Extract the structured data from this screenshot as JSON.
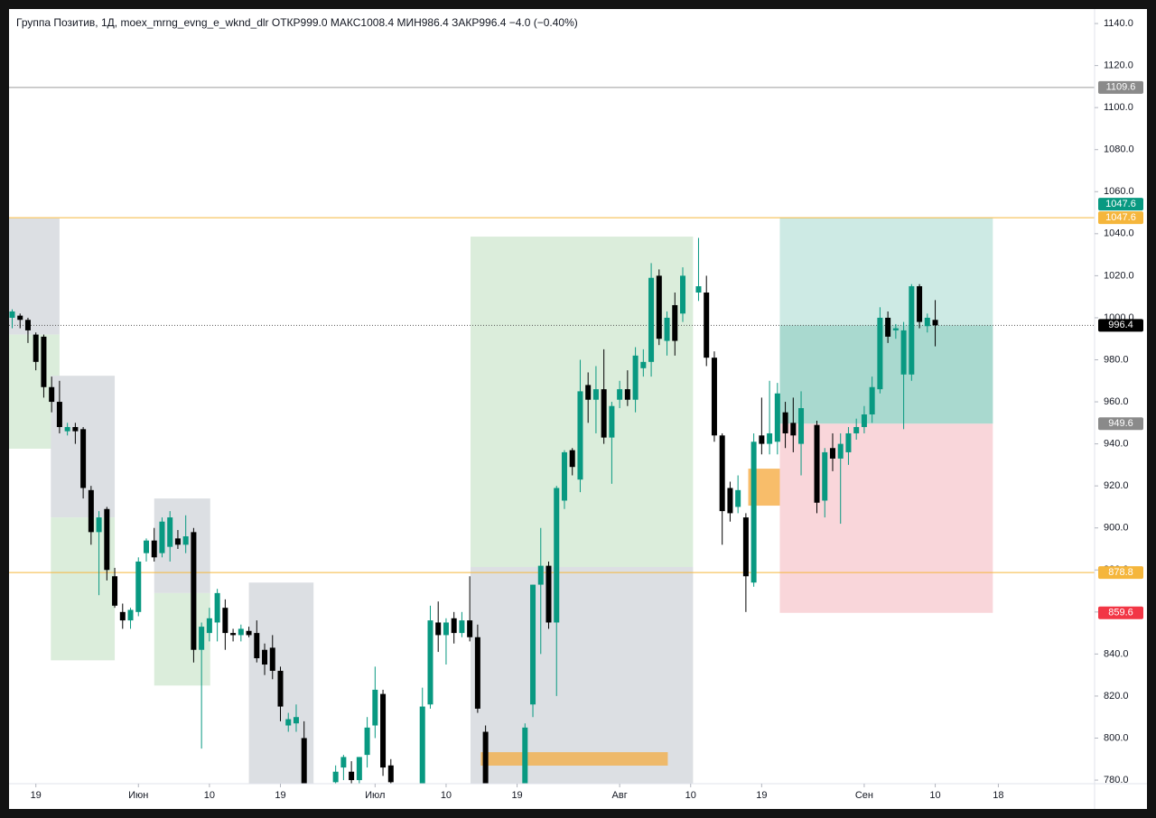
{
  "chart_data": {
    "type": "candlestick",
    "title": "Группа Позитив, 1Д, moex_mrng_evng_e_wknd_dlr  ОТКР999.0  МАКС1008.4  МИН986.4  ЗАКР996.4  −4.0 (−0.40%)",
    "up_color": "#089981",
    "down_color": "#000000",
    "xlim": [
      -3.4,
      134.2
    ],
    "ylim": [
      778.3,
      1146.9
    ],
    "xticks": [
      {
        "value": 0,
        "label": "19"
      },
      {
        "value": 13,
        "label": "Июн"
      },
      {
        "value": 22,
        "label": "10"
      },
      {
        "value": 31,
        "label": "19"
      },
      {
        "value": 43,
        "label": "Июл"
      },
      {
        "value": 52,
        "label": "10"
      },
      {
        "value": 61,
        "label": "19"
      },
      {
        "value": 74,
        "label": "Авг"
      },
      {
        "value": 83,
        "label": "10"
      },
      {
        "value": 92,
        "label": "19"
      },
      {
        "value": 105,
        "label": "Сен"
      },
      {
        "value": 114,
        "label": "10"
      },
      {
        "value": 122,
        "label": "18"
      }
    ],
    "yticks": [
      {
        "value": 780,
        "label": "780.0"
      },
      {
        "value": 800,
        "label": "800.0"
      },
      {
        "value": 820,
        "label": "820.0"
      },
      {
        "value": 840,
        "label": "840.0"
      },
      {
        "value": 860,
        "label": "860.0"
      },
      {
        "value": 880,
        "label": "880.0"
      },
      {
        "value": 900,
        "label": "900.0"
      },
      {
        "value": 920,
        "label": "920.0"
      },
      {
        "value": 940,
        "label": "940.0"
      },
      {
        "value": 960,
        "label": "960.0"
      },
      {
        "value": 980,
        "label": "980.0"
      },
      {
        "value": 1000,
        "label": "1000.0"
      },
      {
        "value": 1020,
        "label": "1020.0"
      },
      {
        "value": 1040,
        "label": "1040.0"
      },
      {
        "value": 1060,
        "label": "1060.0"
      },
      {
        "value": 1080,
        "label": "1080.0"
      },
      {
        "value": 1100,
        "label": "1100.0"
      },
      {
        "value": 1120,
        "label": "1120.0"
      },
      {
        "value": 1140,
        "label": "1140.0"
      }
    ],
    "x": [
      -3,
      -2,
      -1,
      0,
      1,
      2,
      3,
      4,
      5,
      6,
      7,
      8,
      9,
      10,
      11,
      12,
      13,
      14,
      15,
      16,
      17,
      18,
      19,
      20,
      21,
      22,
      23,
      24,
      25,
      26,
      27,
      28,
      29,
      30,
      31,
      32,
      33,
      34,
      38,
      39,
      40,
      41,
      42,
      43,
      44,
      45,
      49,
      50,
      51,
      52,
      53,
      54,
      55,
      56,
      57,
      62,
      63,
      64,
      65,
      66,
      67,
      68,
      69,
      70,
      71,
      72,
      73,
      74,
      75,
      76,
      77,
      78,
      79,
      80,
      81,
      82,
      84,
      85,
      86,
      87,
      88,
      89,
      90,
      91,
      92,
      93,
      94,
      95,
      96,
      97,
      99,
      100,
      101,
      102,
      103,
      104,
      105,
      106,
      107,
      108,
      109,
      110,
      111,
      112,
      113,
      114
    ],
    "open": [
      1000,
      1001,
      999,
      992,
      991,
      967,
      960,
      946,
      948,
      947,
      918,
      898,
      909,
      877,
      860,
      856,
      860,
      888,
      894,
      888,
      891,
      895,
      892,
      898,
      842,
      850,
      855,
      862,
      850,
      849,
      851,
      850,
      842,
      843,
      832,
      806,
      807,
      800,
      779,
      786,
      784,
      780,
      792,
      806,
      821,
      787,
      778,
      816,
      855,
      849,
      857,
      850,
      856,
      848,
      803,
      778,
      816,
      873,
      882,
      855,
      913,
      937,
      923,
      968,
      961,
      966,
      943,
      961,
      966,
      961,
      976,
      979,
      1020,
      989,
      1006,
      1002,
      1012,
      1012,
      981,
      944,
      919,
      910,
      905,
      874,
      944,
      940,
      941,
      955,
      950,
      940,
      949,
      913,
      938,
      933,
      936,
      945,
      948,
      954,
      966,
      1000,
      994,
      973,
      973,
      1015,
      996,
      999
    ],
    "high": [
      1004,
      1002,
      1000,
      993,
      992,
      972,
      970,
      950,
      950,
      948,
      920,
      908,
      910,
      881,
      864,
      862,
      886,
      895,
      900,
      905,
      908,
      899,
      906,
      900,
      855,
      862,
      871,
      866,
      852,
      854,
      853,
      856,
      845,
      849,
      834,
      812,
      816,
      808,
      787,
      792,
      789,
      791,
      810,
      834,
      823,
      790,
      824,
      863,
      865,
      857,
      860,
      860,
      877,
      854,
      806,
      807,
      873,
      900,
      884,
      920,
      937,
      938,
      980,
      974,
      977,
      985,
      960,
      970,
      975,
      986,
      985,
      1026,
      1023,
      1003,
      1012,
      1024,
      1038,
      1020,
      984,
      945,
      922,
      925,
      907,
      945,
      962,
      970,
      969,
      960,
      962,
      965,
      951,
      938,
      945,
      945,
      948,
      952,
      958,
      972,
      1005,
      1003,
      997,
      998,
      1016,
      1016,
      1002,
      1008.4
    ],
    "low": [
      995,
      995,
      988,
      975,
      962,
      955,
      945,
      944,
      940,
      914,
      892,
      868,
      875,
      862,
      852,
      852,
      858,
      884,
      884,
      886,
      884,
      890,
      888,
      836,
      795,
      846,
      846,
      842,
      846,
      846,
      848,
      836,
      830,
      828,
      808,
      803,
      803,
      775,
      778,
      780,
      778,
      778,
      786,
      800,
      782,
      777,
      776,
      814,
      841,
      835,
      845,
      848,
      846,
      812,
      776,
      776,
      810,
      840,
      852,
      820,
      909,
      925,
      917,
      950,
      945,
      940,
      921,
      957,
      958,
      955,
      972,
      972,
      987,
      982,
      982,
      998,
      1008,
      977,
      941,
      892,
      903,
      907,
      860,
      872,
      935,
      935,
      935,
      938,
      936,
      925,
      907,
      905,
      927,
      902,
      930,
      942,
      945,
      950,
      964,
      988,
      990,
      947,
      970,
      995,
      993,
      986.4
    ],
    "close": [
      1003,
      999,
      994,
      979,
      967,
      960,
      948,
      948,
      946,
      919,
      898,
      905,
      880,
      863,
      856,
      861,
      884,
      894,
      886,
      903,
      905,
      892,
      896,
      842,
      853,
      857,
      869,
      850,
      849,
      852,
      849,
      838,
      835,
      832,
      815,
      809,
      810,
      776,
      784,
      791,
      780,
      791,
      805,
      823,
      786,
      779,
      815,
      856,
      849,
      855,
      850,
      856,
      848,
      814,
      777,
      805,
      873,
      882,
      855,
      919,
      936,
      929,
      965,
      961,
      966,
      943,
      958,
      966,
      961,
      982,
      979,
      1019,
      990,
      1000,
      989,
      1020,
      1015,
      981,
      944,
      908,
      907,
      918,
      877,
      941,
      940,
      945,
      964,
      945,
      944,
      957,
      912,
      936,
      933,
      940,
      945,
      948,
      954,
      967,
      1000,
      991,
      995,
      994,
      1015,
      998,
      1000,
      996.4
    ],
    "zones": [
      {
        "x": [
          -3.4,
          3
        ],
        "y": [
          992,
          1047.3
        ],
        "color": "#dcdfe3"
      },
      {
        "x": [
          -3.4,
          3
        ],
        "y": [
          937.7,
          992
        ],
        "color": "#dbeddb"
      },
      {
        "x": [
          1.9,
          10
        ],
        "y": [
          905,
          972.4
        ],
        "color": "#dcdfe3"
      },
      {
        "x": [
          1.9,
          10
        ],
        "y": [
          837,
          905
        ],
        "color": "#dbeddb"
      },
      {
        "x": [
          15,
          22.1
        ],
        "y": [
          869,
          914
        ],
        "color": "#dcdfe3"
      },
      {
        "x": [
          15,
          22.1
        ],
        "y": [
          825,
          869
        ],
        "color": "#dbeddb"
      },
      {
        "x": [
          27,
          35.2
        ],
        "y": [
          778.3,
          874
        ],
        "color": "#dcdfe3"
      },
      {
        "x": [
          55.1,
          83.3
        ],
        "y": [
          881.4,
          1038.6
        ],
        "color": "#dbeddb"
      },
      {
        "x": [
          55.1,
          83.3
        ],
        "y": [
          778.3,
          881.4
        ],
        "color": "#dcdfe3"
      },
      {
        "x": [
          56.4,
          80.1
        ],
        "y": [
          786.9,
          793.3
        ],
        "color": "#eeb96a"
      },
      {
        "x": [
          90.3,
          97.1
        ],
        "y": [
          910.6,
          928.2
        ],
        "color": "#f8bd6a"
      },
      {
        "x": [
          94.3,
          121.3
        ],
        "y": [
          949.6,
          1047.6
        ],
        "color": "#cdeae4"
      },
      {
        "x": [
          94.3,
          121.3
        ],
        "y": [
          949.6,
          996.4
        ],
        "color": "#a9d9cf"
      },
      {
        "x": [
          94.3,
          121.3
        ],
        "y": [
          859.6,
          949.6
        ],
        "color": "#f9d6da"
      }
    ],
    "hlines": [
      {
        "value": 1109.6,
        "color": "#9e9e9e",
        "dash": false
      },
      {
        "value": 1047.6,
        "color": "#f5b63c",
        "dash": false
      },
      {
        "value": 878.8,
        "color": "#f5b63c",
        "dash": false
      },
      {
        "value": 996.4,
        "color": "#555555",
        "dash": true
      }
    ],
    "price_labels": [
      {
        "value": 1109.6,
        "color": "#8a8a8a"
      },
      {
        "value": 1047.6,
        "color": "#f5b63c"
      },
      {
        "value": 1047.6,
        "color": "#089981"
      },
      {
        "value": 996.4,
        "color": "#000000"
      },
      {
        "value": 949.6,
        "color": "#8a8a8a"
      },
      {
        "value": 878.8,
        "color": "#f5b63c"
      },
      {
        "value": 859.6,
        "color": "#f23645"
      }
    ]
  }
}
